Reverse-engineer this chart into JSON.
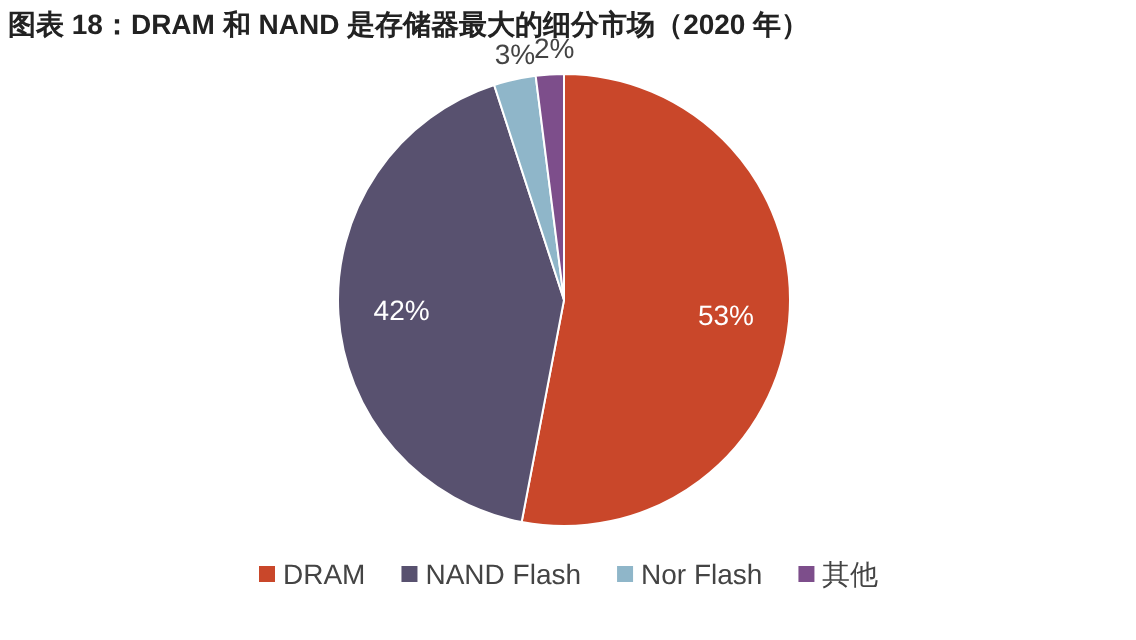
{
  "chart_data": {
    "type": "pie",
    "title": "图表 18：DRAM 和 NAND 是存储器最大的细分市场（2020 年）",
    "categories": [
      "DRAM",
      "NAND Flash",
      "Nor Flash",
      "其他"
    ],
    "values": [
      53,
      42,
      3,
      2
    ],
    "colors": [
      "#c9472a",
      "#58516f",
      "#8fb6c9",
      "#7d4e8b"
    ],
    "value_labels": [
      "53%",
      "42%",
      "3%",
      "2%"
    ],
    "legend": "bottom"
  }
}
